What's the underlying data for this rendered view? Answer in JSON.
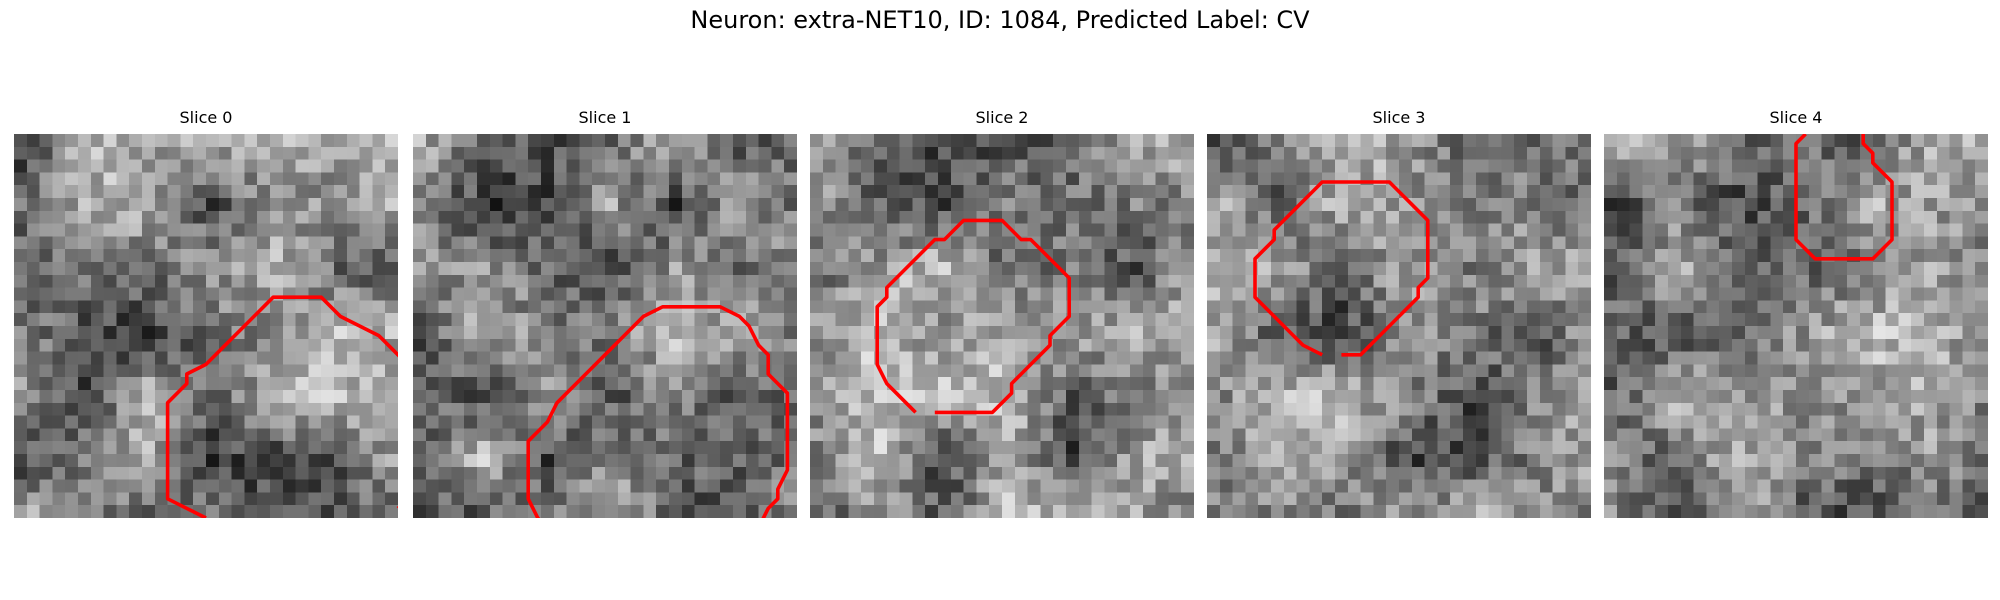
{
  "figure": {
    "title": "Neuron: extra-NET10, ID: 1084, Predicted Label: CV"
  },
  "slices": [
    {
      "label": "Slice 0",
      "seed": 11,
      "contour_color": "#ff0000",
      "contour": [
        [
          10.0,
          20.0
        ],
        [
          8.0,
          19.0
        ],
        [
          8.0,
          18.0
        ],
        [
          8.0,
          17.0
        ],
        [
          8.0,
          16.0
        ],
        [
          8.0,
          15.0
        ],
        [
          8.0,
          14.0
        ],
        [
          9.0,
          13.0
        ],
        [
          9.0,
          12.5
        ],
        [
          10.0,
          12.0
        ],
        [
          11.0,
          11.0
        ],
        [
          12.0,
          10.0
        ],
        [
          13.0,
          9.0
        ],
        [
          13.5,
          8.5
        ],
        [
          16.0,
          8.5
        ],
        [
          17.0,
          9.5
        ],
        [
          18.0,
          10.0
        ],
        [
          19.0,
          10.5
        ],
        [
          20.0,
          11.5
        ],
        [
          21.0,
          12.5
        ],
        [
          21.5,
          13.5
        ],
        [
          21.5,
          14.5
        ],
        [
          21.5,
          16.0
        ],
        [
          21.5,
          17.0
        ],
        [
          21.0,
          17.5
        ],
        [
          21.0,
          18.5
        ],
        [
          20.5,
          19.0
        ],
        [
          20.0,
          19.5
        ]
      ]
    },
    {
      "label": "Slice 1",
      "seed": 23,
      "contour_color": "#ff0000",
      "contour": [
        [
          8.5,
          22.0
        ],
        [
          7.5,
          21.0
        ],
        [
          7.0,
          20.5
        ],
        [
          6.5,
          20.0
        ],
        [
          6.0,
          19.0
        ],
        [
          6.0,
          18.0
        ],
        [
          6.0,
          17.0
        ],
        [
          6.0,
          16.0
        ],
        [
          6.5,
          15.5
        ],
        [
          7.0,
          15.0
        ],
        [
          7.5,
          14.0
        ],
        [
          8.0,
          13.5
        ],
        [
          9.0,
          12.5
        ],
        [
          10.0,
          11.5
        ],
        [
          11.0,
          10.5
        ],
        [
          12.0,
          9.5
        ],
        [
          13.0,
          9.0
        ],
        [
          14.0,
          9.0
        ],
        [
          15.0,
          9.0
        ],
        [
          16.0,
          9.0
        ],
        [
          17.0,
          9.5
        ],
        [
          17.5,
          10.0
        ],
        [
          18.0,
          11.0
        ],
        [
          18.5,
          11.5
        ],
        [
          18.5,
          12.5
        ],
        [
          19.0,
          13.0
        ],
        [
          19.5,
          13.5
        ],
        [
          19.5,
          14.5
        ],
        [
          19.5,
          15.5
        ],
        [
          19.5,
          16.5
        ],
        [
          19.5,
          17.5
        ],
        [
          19.0,
          18.5
        ],
        [
          19.0,
          19.0
        ],
        [
          18.5,
          19.5
        ],
        [
          18.0,
          20.5
        ],
        [
          17.0,
          21.0
        ],
        [
          16.5,
          21.5
        ],
        [
          16.0,
          22.0
        ],
        [
          15.0,
          22.0
        ],
        [
          14.0,
          22.0
        ],
        [
          13.0,
          22.0
        ],
        [
          12.0,
          22.0
        ],
        [
          11.0,
          22.0
        ],
        [
          10.0,
          22.0
        ],
        [
          9.0,
          22.0
        ]
      ]
    },
    {
      "label": "Slice 2",
      "seed": 37,
      "contour_color": "#ff0000",
      "contour": [
        [
          5.5,
          14.5
        ],
        [
          5.0,
          14.0
        ],
        [
          4.5,
          13.5
        ],
        [
          4.0,
          13.0
        ],
        [
          3.5,
          12.0
        ],
        [
          3.5,
          11.0
        ],
        [
          3.5,
          10.0
        ],
        [
          3.5,
          9.0
        ],
        [
          4.0,
          8.5
        ],
        [
          4.0,
          8.0
        ],
        [
          4.5,
          7.5
        ],
        [
          5.0,
          7.0
        ],
        [
          5.5,
          6.5
        ],
        [
          6.0,
          6.0
        ],
        [
          6.5,
          5.5
        ],
        [
          7.0,
          5.5
        ],
        [
          7.5,
          5.0
        ],
        [
          8.0,
          4.5
        ],
        [
          9.0,
          4.5
        ],
        [
          10.0,
          4.5
        ],
        [
          10.5,
          5.0
        ],
        [
          11.0,
          5.5
        ],
        [
          11.5,
          5.5
        ],
        [
          12.0,
          6.0
        ],
        [
          12.5,
          6.5
        ],
        [
          13.0,
          7.0
        ],
        [
          13.5,
          7.5
        ],
        [
          13.5,
          8.5
        ],
        [
          13.5,
          9.5
        ],
        [
          13.0,
          10.0
        ],
        [
          12.5,
          10.5
        ],
        [
          12.5,
          11.0
        ],
        [
          12.0,
          11.5
        ],
        [
          11.5,
          12.0
        ],
        [
          11.0,
          12.5
        ],
        [
          10.5,
          13.0
        ],
        [
          10.5,
          13.5
        ],
        [
          10.0,
          14.0
        ],
        [
          9.5,
          14.5
        ],
        [
          8.5,
          14.5
        ],
        [
          7.5,
          14.5
        ],
        [
          6.5,
          14.5
        ]
      ]
    },
    {
      "label": "Slice 3",
      "seed": 41,
      "contour_color": "#ff0000",
      "contour": [
        [
          6.0,
          11.5
        ],
        [
          5.0,
          11.0
        ],
        [
          4.5,
          10.5
        ],
        [
          4.0,
          10.0
        ],
        [
          3.5,
          9.5
        ],
        [
          3.0,
          9.0
        ],
        [
          2.5,
          8.5
        ],
        [
          2.5,
          7.5
        ],
        [
          2.5,
          6.5
        ],
        [
          3.0,
          6.0
        ],
        [
          3.5,
          5.5
        ],
        [
          3.5,
          5.0
        ],
        [
          4.0,
          4.5
        ],
        [
          4.5,
          4.0
        ],
        [
          5.0,
          3.5
        ],
        [
          5.5,
          3.0
        ],
        [
          6.0,
          2.5
        ],
        [
          7.0,
          2.5
        ],
        [
          8.0,
          2.5
        ],
        [
          9.0,
          2.5
        ],
        [
          9.5,
          2.5
        ],
        [
          10.0,
          3.0
        ],
        [
          10.5,
          3.5
        ],
        [
          11.0,
          4.0
        ],
        [
          11.5,
          4.5
        ],
        [
          11.5,
          5.5
        ],
        [
          11.5,
          6.5
        ],
        [
          11.5,
          7.5
        ],
        [
          11.0,
          8.0
        ],
        [
          11.0,
          8.5
        ],
        [
          10.5,
          9.0
        ],
        [
          10.0,
          9.5
        ],
        [
          9.5,
          10.0
        ],
        [
          9.0,
          10.5
        ],
        [
          8.5,
          11.0
        ],
        [
          8.0,
          11.5
        ],
        [
          7.0,
          11.5
        ]
      ]
    },
    {
      "label": "Slice 4",
      "seed": 53,
      "contour_color": "#ff0000",
      "contour": [
        [
          10.5,
          0.0
        ],
        [
          10.0,
          0.5
        ],
        [
          10.0,
          1.5
        ],
        [
          10.0,
          2.5
        ],
        [
          10.0,
          3.5
        ],
        [
          10.0,
          4.5
        ],
        [
          10.0,
          5.5
        ],
        [
          10.5,
          6.0
        ],
        [
          11.0,
          6.5
        ],
        [
          12.0,
          6.5
        ],
        [
          13.0,
          6.5
        ],
        [
          14.0,
          6.5
        ],
        [
          14.5,
          6.0
        ],
        [
          15.0,
          5.5
        ],
        [
          15.0,
          4.5
        ],
        [
          15.0,
          3.5
        ],
        [
          15.0,
          2.5
        ],
        [
          14.5,
          2.0
        ],
        [
          14.0,
          1.5
        ],
        [
          14.0,
          1.0
        ],
        [
          13.5,
          0.5
        ],
        [
          13.5,
          0.0
        ]
      ]
    }
  ]
}
